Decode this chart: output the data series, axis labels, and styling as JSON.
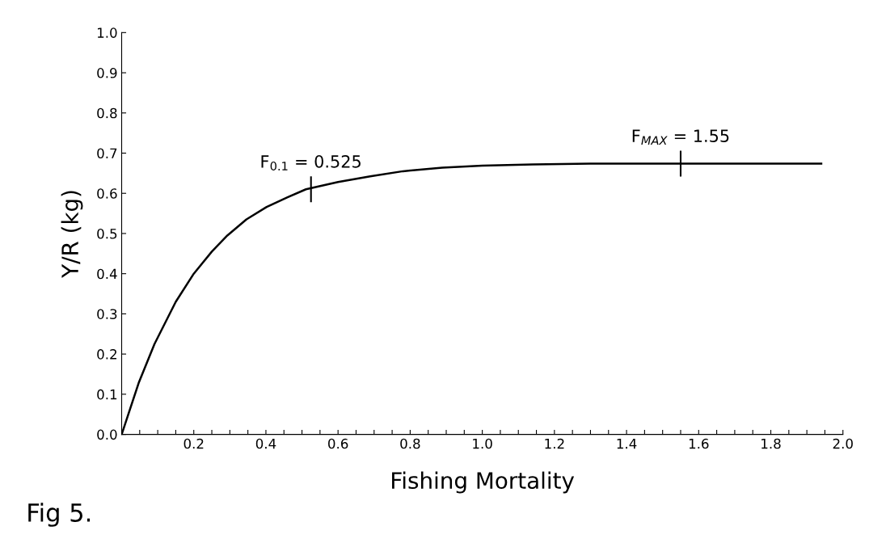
{
  "chart_data": {
    "type": "line",
    "xlabel": "Fishing Mortality",
    "ylabel": "Y/R (kg)",
    "x": [
      0,
      0.048,
      0.091,
      0.15,
      0.2,
      0.25,
      0.293,
      0.346,
      0.402,
      0.46,
      0.511,
      0.6,
      0.689,
      0.78,
      0.889,
      1.0,
      1.14,
      1.3,
      1.546,
      1.75,
      1.94
    ],
    "series": [
      {
        "color": "#000000",
        "values": [
          0,
          0.13,
          0.225,
          0.33,
          0.4,
          0.455,
          0.495,
          0.535,
          0.566,
          0.59,
          0.61,
          0.628,
          0.642,
          0.655,
          0.664,
          0.669,
          0.672,
          0.674,
          0.674,
          0.674,
          0.674
        ]
      }
    ],
    "xlim": [
      0,
      2.0
    ],
    "ylim": [
      0,
      1.0
    ],
    "xticks": [
      {
        "value": 0.05,
        "label": null
      },
      {
        "value": 0.1,
        "label": null
      },
      {
        "value": 0.15,
        "label": null
      },
      {
        "value": 0.2,
        "label": "0.2"
      },
      {
        "value": 0.25,
        "label": null
      },
      {
        "value": 0.3,
        "label": null
      },
      {
        "value": 0.35,
        "label": null
      },
      {
        "value": 0.4,
        "label": "0.4"
      },
      {
        "value": 0.45,
        "label": null
      },
      {
        "value": 0.5,
        "label": null
      },
      {
        "value": 0.55,
        "label": null
      },
      {
        "value": 0.6,
        "label": "0.6"
      },
      {
        "value": 0.65,
        "label": null
      },
      {
        "value": 0.7,
        "label": null
      },
      {
        "value": 0.75,
        "label": null
      },
      {
        "value": 0.8,
        "label": "0.8"
      },
      {
        "value": 0.85,
        "label": null
      },
      {
        "value": 0.9,
        "label": null
      },
      {
        "value": 0.95,
        "label": null
      },
      {
        "value": 1.0,
        "label": "1.0"
      },
      {
        "value": 1.05,
        "label": null
      },
      {
        "value": 1.1,
        "label": null
      },
      {
        "value": 1.15,
        "label": null
      },
      {
        "value": 1.2,
        "label": "1.2"
      },
      {
        "value": 1.25,
        "label": null
      },
      {
        "value": 1.3,
        "label": null
      },
      {
        "value": 1.35,
        "label": null
      },
      {
        "value": 1.4,
        "label": "1.4"
      },
      {
        "value": 1.45,
        "label": null
      },
      {
        "value": 1.5,
        "label": null
      },
      {
        "value": 1.55,
        "label": null
      },
      {
        "value": 1.6,
        "label": "1.6"
      },
      {
        "value": 1.65,
        "label": null
      },
      {
        "value": 1.7,
        "label": null
      },
      {
        "value": 1.75,
        "label": null
      },
      {
        "value": 1.8,
        "label": "1.8"
      },
      {
        "value": 1.85,
        "label": null
      },
      {
        "value": 1.9,
        "label": null
      },
      {
        "value": 1.95,
        "label": null
      },
      {
        "value": 2.0,
        "label": "2.0"
      }
    ],
    "yticks": [
      {
        "value": 0,
        "label": "0.0"
      },
      0.1,
      0.2,
      0.3,
      0.4,
      0.5,
      0.6,
      0.7,
      0.8,
      0.9,
      {
        "value": 1,
        "label": "1.0"
      }
    ],
    "annotations": [
      {
        "text": "F$_{0.1}$ = 0.525",
        "x": 0.525,
        "y": 0.61
      },
      {
        "text": "F$_{MAX}$ = 1.55",
        "x": 1.55,
        "y": 0.674
      },
      "Fig 5."
    ],
    "grid": false,
    "legend": false,
    "marker": "none",
    "line_style": "solid"
  }
}
